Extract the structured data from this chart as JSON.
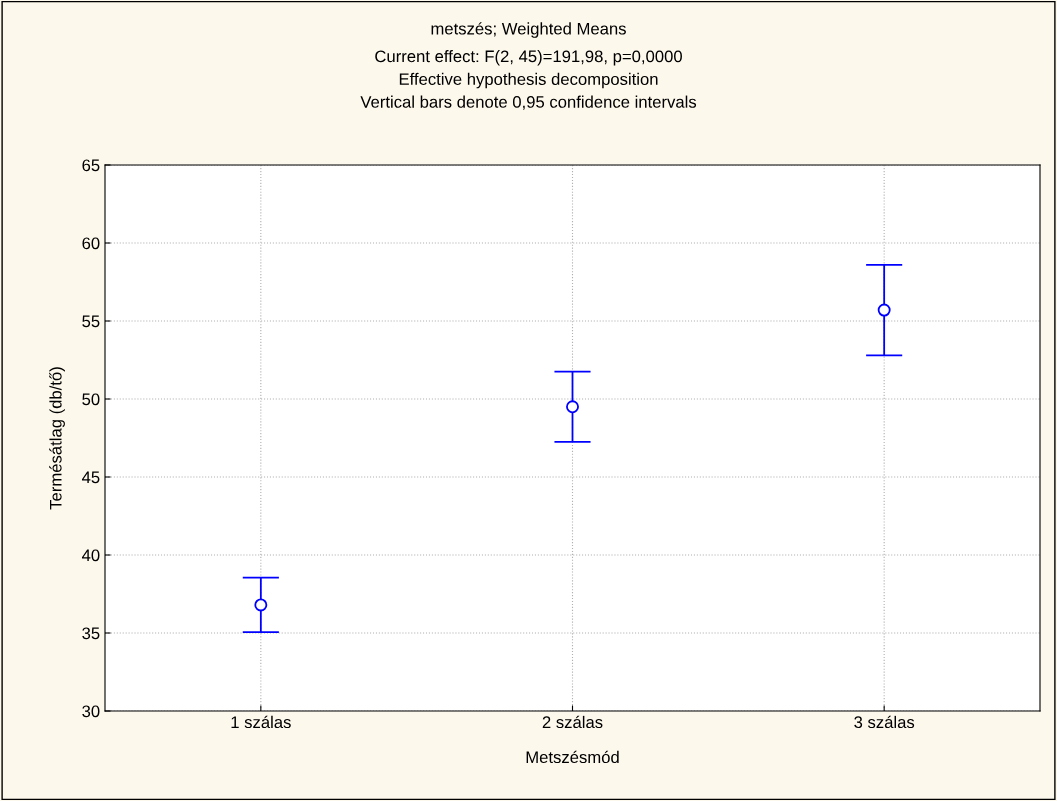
{
  "chart_data": {
    "type": "scatter",
    "title": "metszés; Weighted Means",
    "subtitle": "Current effect: F(2, 45)=191,98, p=0,0000\nEffective hypothesis decomposition\nVertical bars denote 0,95 confidence intervals",
    "xlabel": "Metszésmód",
    "ylabel": "Termésátlag (db/tő)",
    "categories": [
      "1 szálas",
      "2 szálas",
      "3 szálas"
    ],
    "series": [
      {
        "color": "#0000ff",
        "values": [
          36.8,
          49.5,
          55.7
        ],
        "errors": [
          1.75,
          2.25,
          2.9
        ]
      }
    ],
    "ylim": [
      30,
      65
    ],
    "yticks": [
      30,
      35,
      40,
      45,
      50,
      55,
      60,
      65
    ],
    "grid": true,
    "marker": "circle",
    "legend": false
  }
}
